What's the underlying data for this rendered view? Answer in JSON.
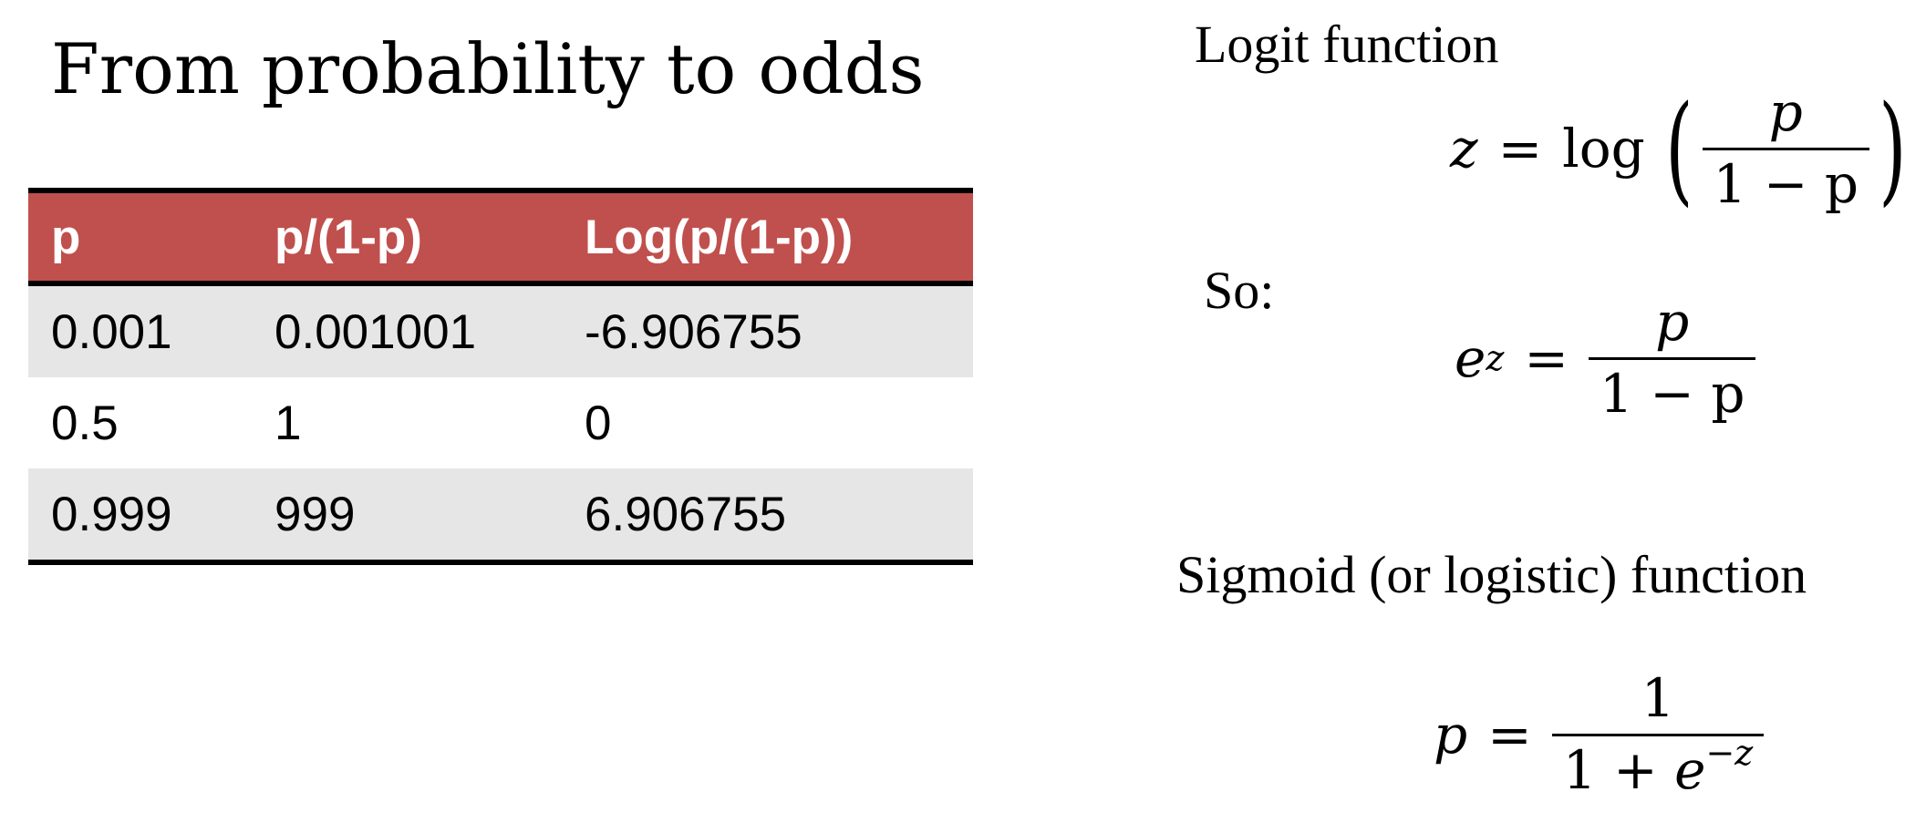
{
  "title": "From probability to odds",
  "table": {
    "headers": [
      "p",
      "p/(1-p)",
      "Log(p/(1-p))"
    ],
    "rows": [
      [
        "0.001",
        "0.001001",
        "-6.906755"
      ],
      [
        "0.5",
        "1",
        "0"
      ],
      [
        "0.999",
        "999",
        "6.906755"
      ]
    ],
    "header_color": "#c0504d",
    "stripe_color": "#e6e6e6"
  },
  "logit": {
    "label": "Logit function",
    "lhs": "z",
    "eq": "=",
    "fn": "log",
    "num": "p",
    "den": "1 − p"
  },
  "so": {
    "label": "So:",
    "base": "e",
    "exp": "z",
    "eq": "=",
    "num": "p",
    "den": "1 − p"
  },
  "sigmoid": {
    "label": "Sigmoid (or logistic) function",
    "lhs": "p",
    "eq": "=",
    "num": "1",
    "den_pre": "1 + ",
    "den_base": "e",
    "den_exp": "−z"
  }
}
